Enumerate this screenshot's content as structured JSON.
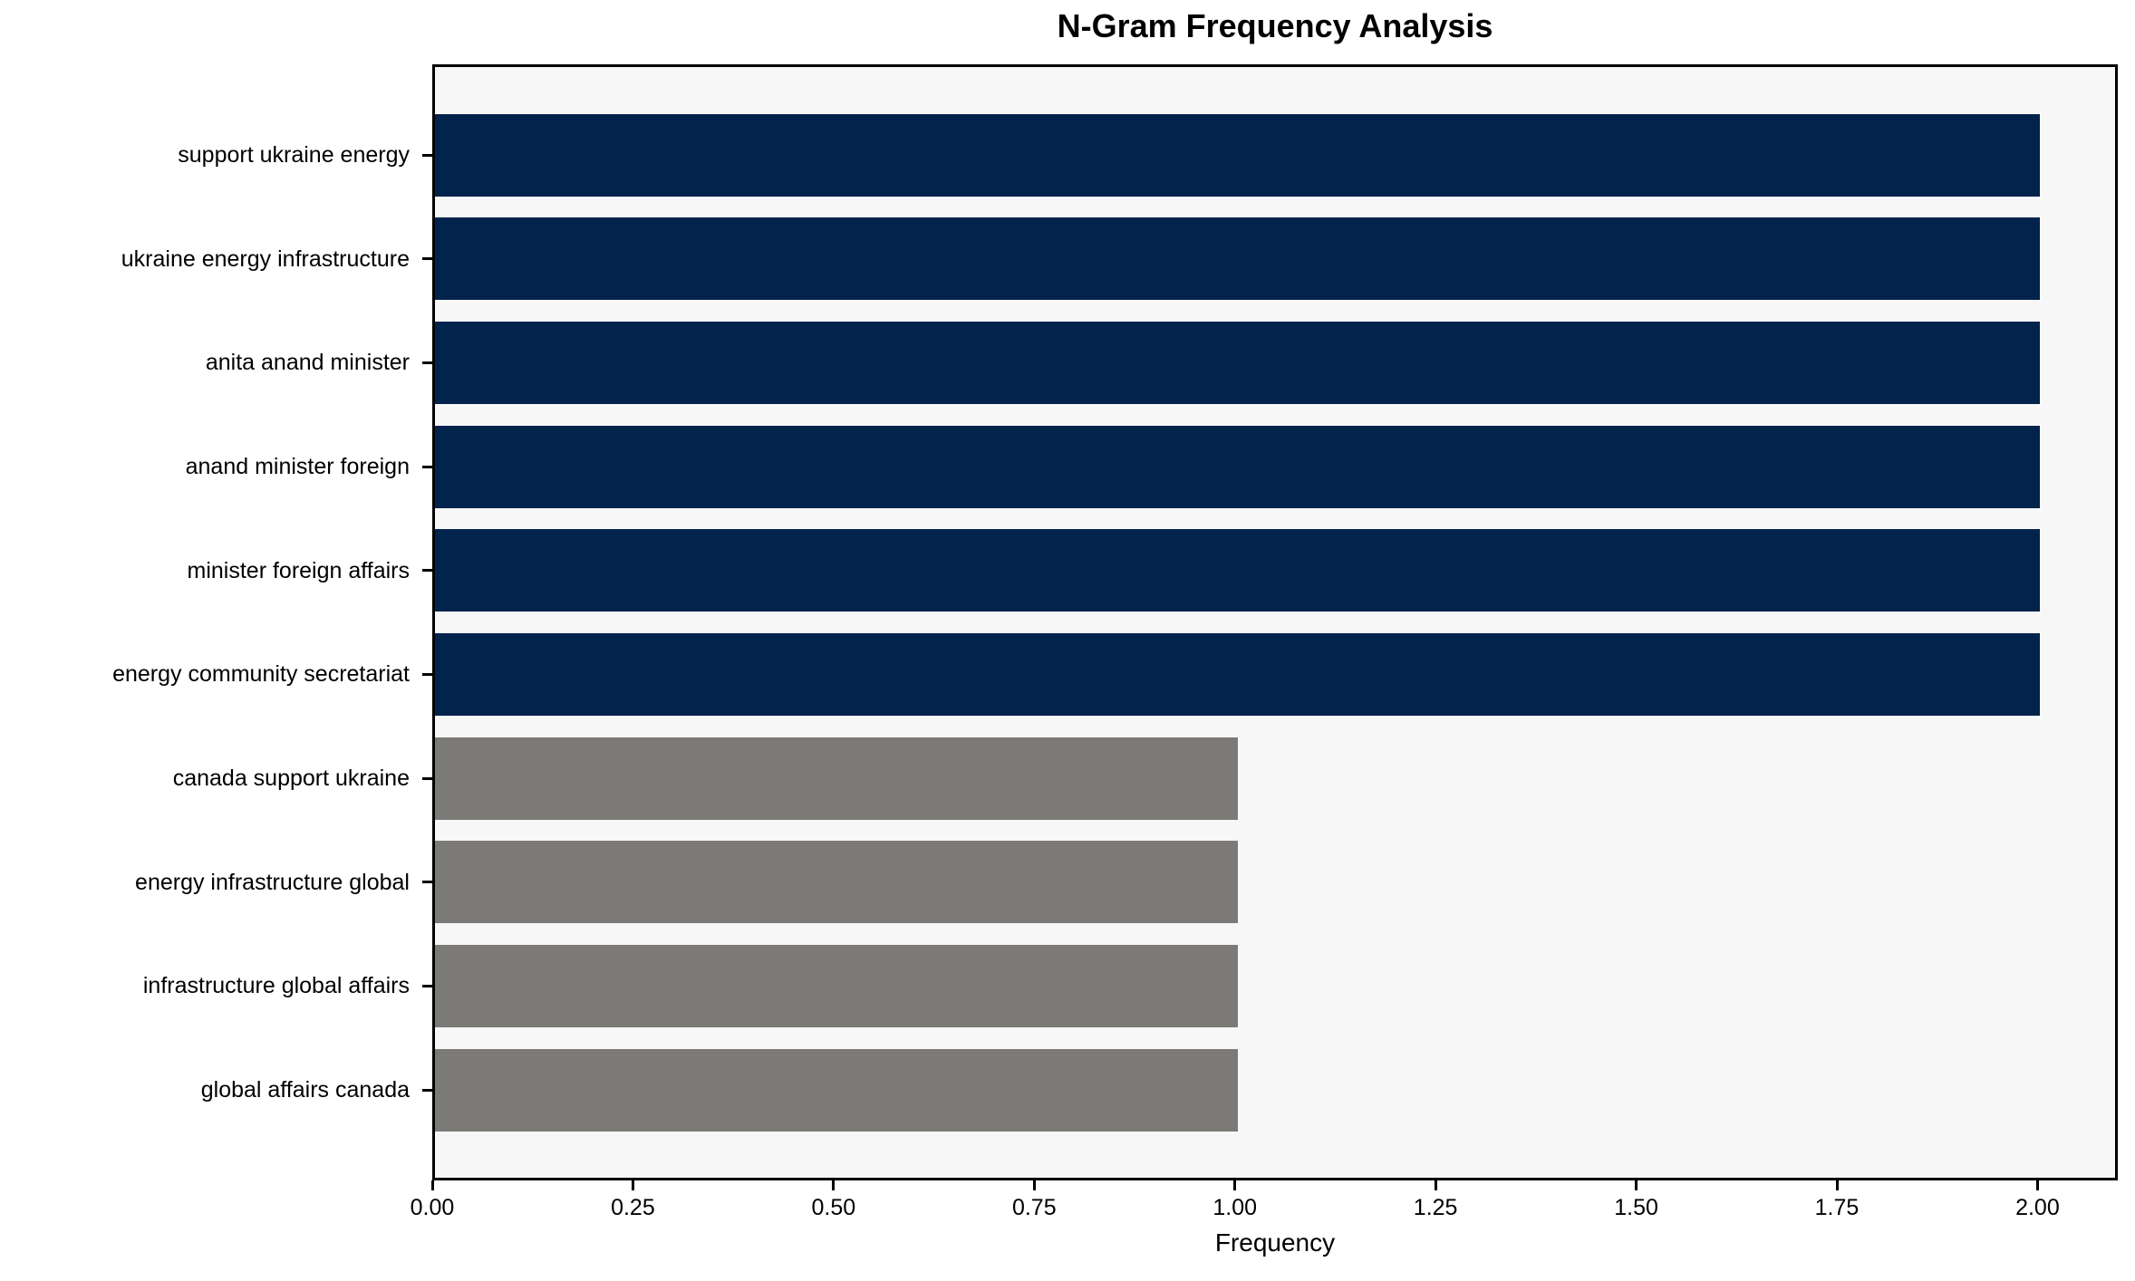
{
  "chart_data": {
    "type": "bar",
    "orientation": "horizontal",
    "title": "N-Gram Frequency Analysis",
    "xlabel": "Frequency",
    "ylabel": "",
    "categories": [
      "support ukraine energy",
      "ukraine energy infrastructure",
      "anita anand minister",
      "anand minister foreign",
      "minister foreign affairs",
      "energy community secretariat",
      "canada support ukraine",
      "energy infrastructure global",
      "infrastructure global affairs",
      "global affairs canada"
    ],
    "values": [
      2,
      2,
      2,
      2,
      2,
      2,
      1,
      1,
      1,
      1
    ],
    "bar_colors": [
      "#02234C",
      "#02234C",
      "#02234C",
      "#02234C",
      "#02234C",
      "#02234C",
      "#7B7A76",
      "#7B7A76",
      "#7B7A76",
      "#7B7A76"
    ],
    "x_ticks": [
      0,
      0.25,
      0.5,
      0.75,
      1.0,
      1.25,
      1.5,
      1.75,
      2.0
    ],
    "x_tick_labels": [
      "0.00",
      "0.25",
      "0.50",
      "0.75",
      "1.00",
      "1.25",
      "1.50",
      "1.75",
      "2.00"
    ],
    "xlim": [
      0,
      2.1
    ],
    "grid": false,
    "legend": null,
    "colors": {
      "high_frequency_bar": "#02234C",
      "low_frequency_bar": "#7B7A76",
      "plot_background": "#f7f7f7",
      "figure_background": "#ffffff",
      "text": "#000000"
    }
  }
}
